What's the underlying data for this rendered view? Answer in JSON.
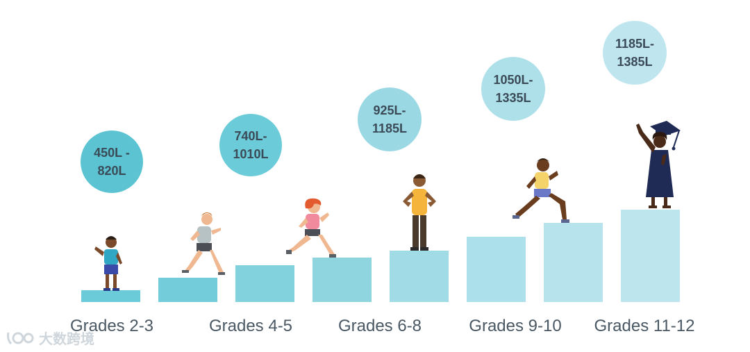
{
  "levels": [
    {
      "grade": "Grades 2-3",
      "lexile": "450L -\n820L",
      "bubble_color": "#5bc3d2",
      "bar_color": "#6ccbd8",
      "child": "small-child"
    },
    {
      "grade": "",
      "lexile": "740L-\n1010L",
      "bubble_color": "#6ccbd8",
      "bar_color": "#73ccd9",
      "child": "running-boy"
    },
    {
      "grade": "Grades 4-5",
      "lexile": "",
      "bubble_color": "",
      "bar_color": "#82d2de",
      "child": "running-girl"
    },
    {
      "grade": "",
      "lexile": "925L-\n1185L",
      "bubble_color": "#9ad9e4",
      "bar_color": "#8fd5e0",
      "child": ""
    },
    {
      "grade": "Grades 6-8",
      "lexile": "",
      "bubble_color": "",
      "bar_color": "#a0dbe6",
      "child": "standing-teen"
    },
    {
      "grade": "",
      "lexile": "1050L-\n1335L",
      "bubble_color": "#aee0ea",
      "bar_color": "#ace0ea",
      "child": ""
    },
    {
      "grade": "Grades 9-10",
      "lexile": "",
      "bubble_color": "",
      "bar_color": "#b6e3ec",
      "child": "climbing-teen"
    },
    {
      "grade": "Grades 11-12",
      "lexile": "1185L-\n1385L",
      "bubble_color": "#bfe6ee",
      "bar_color": "#bde5ee",
      "child": "graduate"
    }
  ],
  "watermark": {
    "text": "大数跨境",
    "icon": "watermark-logo-icon"
  }
}
